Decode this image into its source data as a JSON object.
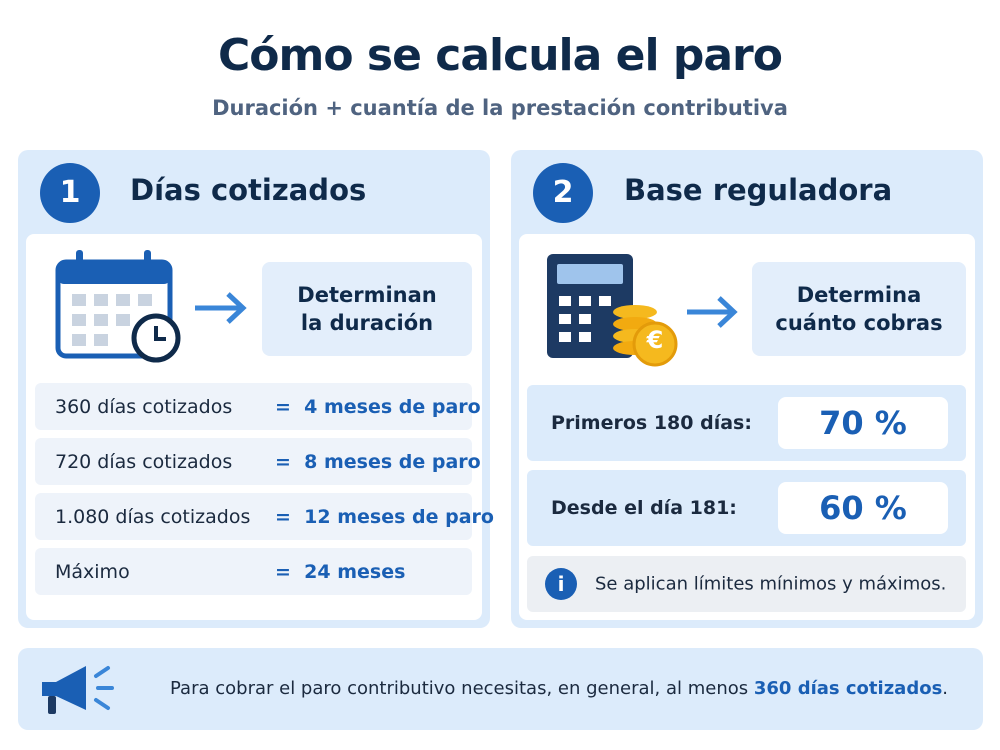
{
  "header": {
    "title": "Cómo se calcula el paro",
    "subtitle": "Duración + cuantía de la prestación contributiva"
  },
  "panels": [
    {
      "number": "1",
      "title": "Días cotizados",
      "result": [
        "Determinan",
        "la duración"
      ],
      "rows": [
        {
          "left": "360 días cotizados",
          "right": "=  4 meses de paro"
        },
        {
          "left": "720 días cotizados",
          "right": "=  8 meses de paro"
        },
        {
          "left": "1.080 días cotizados",
          "right": "=  12 meses de paro"
        },
        {
          "left": "Máximo",
          "right": "=  24 meses"
        }
      ]
    },
    {
      "number": "2",
      "title": "Base reguladora",
      "result": [
        "Determina",
        "cuánto cobras"
      ],
      "coin_symbol": "€",
      "rows": [
        {
          "label": "Primeros 180 días:",
          "value": "70 %"
        },
        {
          "label": "Desde el día 181:",
          "value": "60 %"
        }
      ],
      "note_icon": "i",
      "note": "Se aplican límites mínimos y máximos."
    }
  ],
  "footer": {
    "text": "Para cobrar el paro contributivo necesitas, en general, al menos ",
    "highlight": "360 días cotizados",
    "end": "."
  }
}
